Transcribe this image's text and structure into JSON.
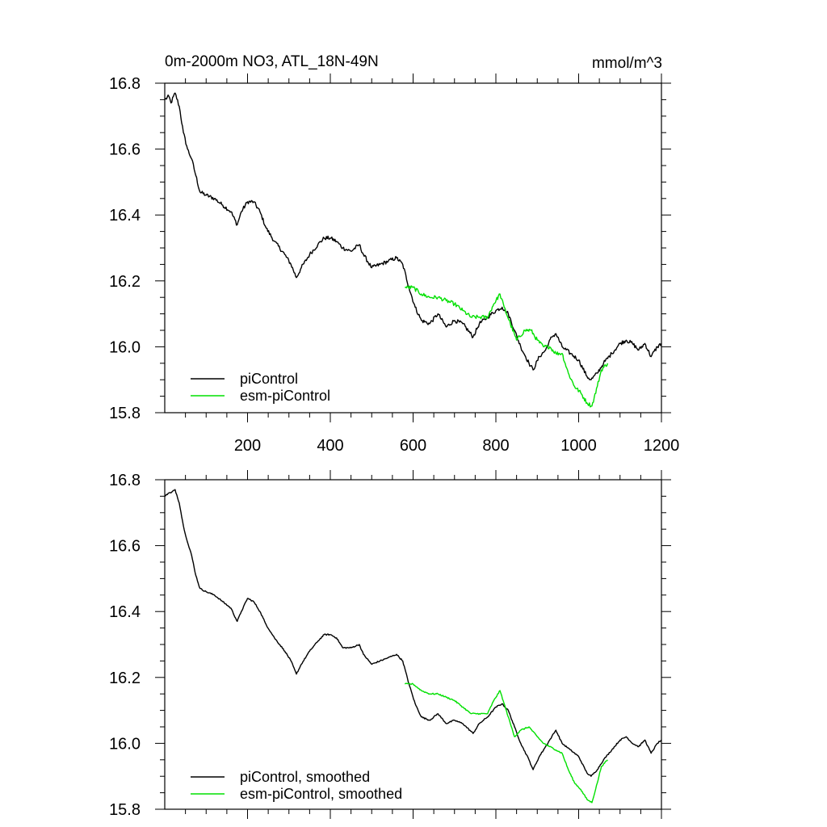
{
  "colors": {
    "piControl": "#000000",
    "esm_piControl": "#00e000"
  },
  "chart_data": [
    {
      "type": "line",
      "title_left": "0m-2000m NO3, ATL_18N-49N",
      "title_right": "mmol/m^3",
      "xlabel": "",
      "ylabel": "",
      "xlim": [
        0,
        1200
      ],
      "ylim": [
        15.8,
        16.8
      ],
      "x_ticks": [
        200,
        400,
        600,
        800,
        1000,
        1200
      ],
      "x_tick_labels": [
        "200",
        "400",
        "600",
        "800",
        "1000",
        "1200"
      ],
      "y_ticks": [
        15.8,
        16.0,
        16.2,
        16.4,
        16.6,
        16.8
      ],
      "y_tick_labels": [
        "15.8",
        "16.0",
        "16.2",
        "16.4",
        "16.6",
        "16.8"
      ],
      "legend": {
        "position": "bottom-left",
        "entries": [
          "piControl",
          "esm-piControl"
        ]
      },
      "noise": 0.012,
      "series": [
        {
          "name": "piControl",
          "color": "#000000",
          "points": [
            [
              0,
              16.75
            ],
            [
              10,
              16.76
            ],
            [
              15,
              16.74
            ],
            [
              25,
              16.77
            ],
            [
              35,
              16.73
            ],
            [
              45,
              16.65
            ],
            [
              55,
              16.6
            ],
            [
              65,
              16.57
            ],
            [
              75,
              16.52
            ],
            [
              85,
              16.47
            ],
            [
              100,
              16.46
            ],
            [
              120,
              16.45
            ],
            [
              140,
              16.43
            ],
            [
              160,
              16.41
            ],
            [
              175,
              16.37
            ],
            [
              185,
              16.41
            ],
            [
              200,
              16.44
            ],
            [
              215,
              16.44
            ],
            [
              230,
              16.41
            ],
            [
              245,
              16.36
            ],
            [
              265,
              16.32
            ],
            [
              290,
              16.28
            ],
            [
              305,
              16.25
            ],
            [
              318,
              16.21
            ],
            [
              330,
              16.24
            ],
            [
              350,
              16.28
            ],
            [
              370,
              16.31
            ],
            [
              385,
              16.33
            ],
            [
              400,
              16.33
            ],
            [
              415,
              16.32
            ],
            [
              430,
              16.3
            ],
            [
              450,
              16.29
            ],
            [
              470,
              16.31
            ],
            [
              480,
              16.28
            ],
            [
              500,
              16.24
            ],
            [
              520,
              16.25
            ],
            [
              540,
              16.26
            ],
            [
              560,
              16.27
            ],
            [
              575,
              16.25
            ],
            [
              590,
              16.18
            ],
            [
              605,
              16.12
            ],
            [
              620,
              16.08
            ],
            [
              640,
              16.07
            ],
            [
              660,
              16.1
            ],
            [
              680,
              16.06
            ],
            [
              700,
              16.08
            ],
            [
              720,
              16.07
            ],
            [
              745,
              16.03
            ],
            [
              760,
              16.07
            ],
            [
              780,
              16.09
            ],
            [
              800,
              16.11
            ],
            [
              815,
              16.12
            ],
            [
              830,
              16.1
            ],
            [
              845,
              16.05
            ],
            [
              860,
              16.0
            ],
            [
              880,
              15.95
            ],
            [
              890,
              15.93
            ],
            [
              905,
              15.97
            ],
            [
              920,
              15.99
            ],
            [
              935,
              16.03
            ],
            [
              945,
              16.04
            ],
            [
              960,
              16.0
            ],
            [
              980,
              15.98
            ],
            [
              1000,
              15.96
            ],
            [
              1020,
              15.91
            ],
            [
              1030,
              15.9
            ],
            [
              1045,
              15.92
            ],
            [
              1060,
              15.95
            ],
            [
              1080,
              15.98
            ],
            [
              1100,
              16.01
            ],
            [
              1115,
              16.02
            ],
            [
              1130,
              16.01
            ],
            [
              1145,
              15.99
            ],
            [
              1160,
              16.01
            ],
            [
              1175,
              15.97
            ],
            [
              1190,
              16.0
            ],
            [
              1200,
              16.01
            ]
          ]
        },
        {
          "name": "esm-piControl",
          "color": "#00e000",
          "points": [
            [
              580,
              16.18
            ],
            [
              600,
              16.18
            ],
            [
              620,
              16.16
            ],
            [
              640,
              16.15
            ],
            [
              660,
              16.15
            ],
            [
              680,
              16.14
            ],
            [
              700,
              16.13
            ],
            [
              720,
              16.11
            ],
            [
              740,
              16.09
            ],
            [
              760,
              16.09
            ],
            [
              780,
              16.09
            ],
            [
              795,
              16.13
            ],
            [
              810,
              16.16
            ],
            [
              820,
              16.12
            ],
            [
              835,
              16.07
            ],
            [
              850,
              16.02
            ],
            [
              870,
              16.05
            ],
            [
              885,
              16.05
            ],
            [
              900,
              16.02
            ],
            [
              915,
              16.0
            ],
            [
              930,
              16.0
            ],
            [
              945,
              15.98
            ],
            [
              960,
              15.98
            ],
            [
              975,
              15.92
            ],
            [
              990,
              15.88
            ],
            [
              1005,
              15.86
            ],
            [
              1020,
              15.83
            ],
            [
              1032,
              15.82
            ],
            [
              1045,
              15.88
            ],
            [
              1055,
              15.93
            ],
            [
              1070,
              15.95
            ]
          ]
        }
      ]
    },
    {
      "type": "line",
      "xlabel": "",
      "ylabel": "",
      "xlim": [
        0,
        1200
      ],
      "ylim": [
        15.8,
        16.8
      ],
      "y_ticks": [
        15.8,
        16.0,
        16.2,
        16.4,
        16.6,
        16.8
      ],
      "y_tick_labels": [
        "15.8",
        "16.0",
        "16.2",
        "16.4",
        "16.6",
        "16.8"
      ],
      "legend": {
        "position": "bottom-left",
        "entries": [
          "piControl, smoothed",
          "esm-piControl, smoothed"
        ]
      },
      "noise": 0.004,
      "series": [
        {
          "name": "piControl, smoothed",
          "color": "#000000",
          "points": [
            [
              0,
              16.75
            ],
            [
              10,
              16.76
            ],
            [
              15,
              16.76
            ],
            [
              25,
              16.77
            ],
            [
              35,
              16.73
            ],
            [
              45,
              16.66
            ],
            [
              55,
              16.61
            ],
            [
              65,
              16.57
            ],
            [
              75,
              16.51
            ],
            [
              85,
              16.47
            ],
            [
              100,
              16.46
            ],
            [
              120,
              16.45
            ],
            [
              140,
              16.43
            ],
            [
              160,
              16.41
            ],
            [
              175,
              16.37
            ],
            [
              185,
              16.4
            ],
            [
              200,
              16.44
            ],
            [
              215,
              16.43
            ],
            [
              230,
              16.4
            ],
            [
              245,
              16.36
            ],
            [
              265,
              16.32
            ],
            [
              290,
              16.28
            ],
            [
              305,
              16.25
            ],
            [
              318,
              16.21
            ],
            [
              330,
              16.24
            ],
            [
              350,
              16.28
            ],
            [
              370,
              16.31
            ],
            [
              385,
              16.33
            ],
            [
              400,
              16.33
            ],
            [
              415,
              16.32
            ],
            [
              430,
              16.29
            ],
            [
              450,
              16.29
            ],
            [
              470,
              16.3
            ],
            [
              480,
              16.27
            ],
            [
              500,
              16.24
            ],
            [
              520,
              16.25
            ],
            [
              540,
              16.26
            ],
            [
              560,
              16.27
            ],
            [
              575,
              16.25
            ],
            [
              590,
              16.18
            ],
            [
              605,
              16.12
            ],
            [
              620,
              16.08
            ],
            [
              640,
              16.07
            ],
            [
              660,
              16.09
            ],
            [
              680,
              16.06
            ],
            [
              700,
              16.07
            ],
            [
              720,
              16.06
            ],
            [
              745,
              16.03
            ],
            [
              760,
              16.06
            ],
            [
              780,
              16.08
            ],
            [
              800,
              16.11
            ],
            [
              815,
              16.12
            ],
            [
              830,
              16.1
            ],
            [
              845,
              16.05
            ],
            [
              860,
              16.0
            ],
            [
              880,
              15.95
            ],
            [
              890,
              15.92
            ],
            [
              905,
              15.96
            ],
            [
              920,
              15.99
            ],
            [
              935,
              16.02
            ],
            [
              945,
              16.04
            ],
            [
              960,
              16.0
            ],
            [
              980,
              15.98
            ],
            [
              1000,
              15.96
            ],
            [
              1020,
              15.91
            ],
            [
              1030,
              15.9
            ],
            [
              1045,
              15.92
            ],
            [
              1060,
              15.95
            ],
            [
              1080,
              15.98
            ],
            [
              1100,
              16.01
            ],
            [
              1115,
              16.02
            ],
            [
              1130,
              16.0
            ],
            [
              1145,
              15.99
            ],
            [
              1160,
              16.01
            ],
            [
              1175,
              15.97
            ],
            [
              1190,
              16.0
            ],
            [
              1200,
              16.01
            ]
          ]
        },
        {
          "name": "esm-piControl, smoothed",
          "color": "#00e000",
          "points": [
            [
              580,
              16.18
            ],
            [
              600,
              16.18
            ],
            [
              620,
              16.16
            ],
            [
              640,
              16.15
            ],
            [
              660,
              16.15
            ],
            [
              680,
              16.14
            ],
            [
              700,
              16.13
            ],
            [
              720,
              16.11
            ],
            [
              740,
              16.09
            ],
            [
              760,
              16.09
            ],
            [
              780,
              16.09
            ],
            [
              795,
              16.13
            ],
            [
              810,
              16.16
            ],
            [
              820,
              16.12
            ],
            [
              835,
              16.06
            ],
            [
              845,
              16.02
            ],
            [
              860,
              16.04
            ],
            [
              880,
              16.05
            ],
            [
              900,
              16.02
            ],
            [
              915,
              16.0
            ],
            [
              930,
              15.99
            ],
            [
              945,
              15.98
            ],
            [
              960,
              15.97
            ],
            [
              975,
              15.92
            ],
            [
              990,
              15.88
            ],
            [
              1005,
              15.86
            ],
            [
              1020,
              15.83
            ],
            [
              1032,
              15.82
            ],
            [
              1045,
              15.88
            ],
            [
              1055,
              15.93
            ],
            [
              1070,
              15.95
            ]
          ]
        }
      ]
    }
  ]
}
